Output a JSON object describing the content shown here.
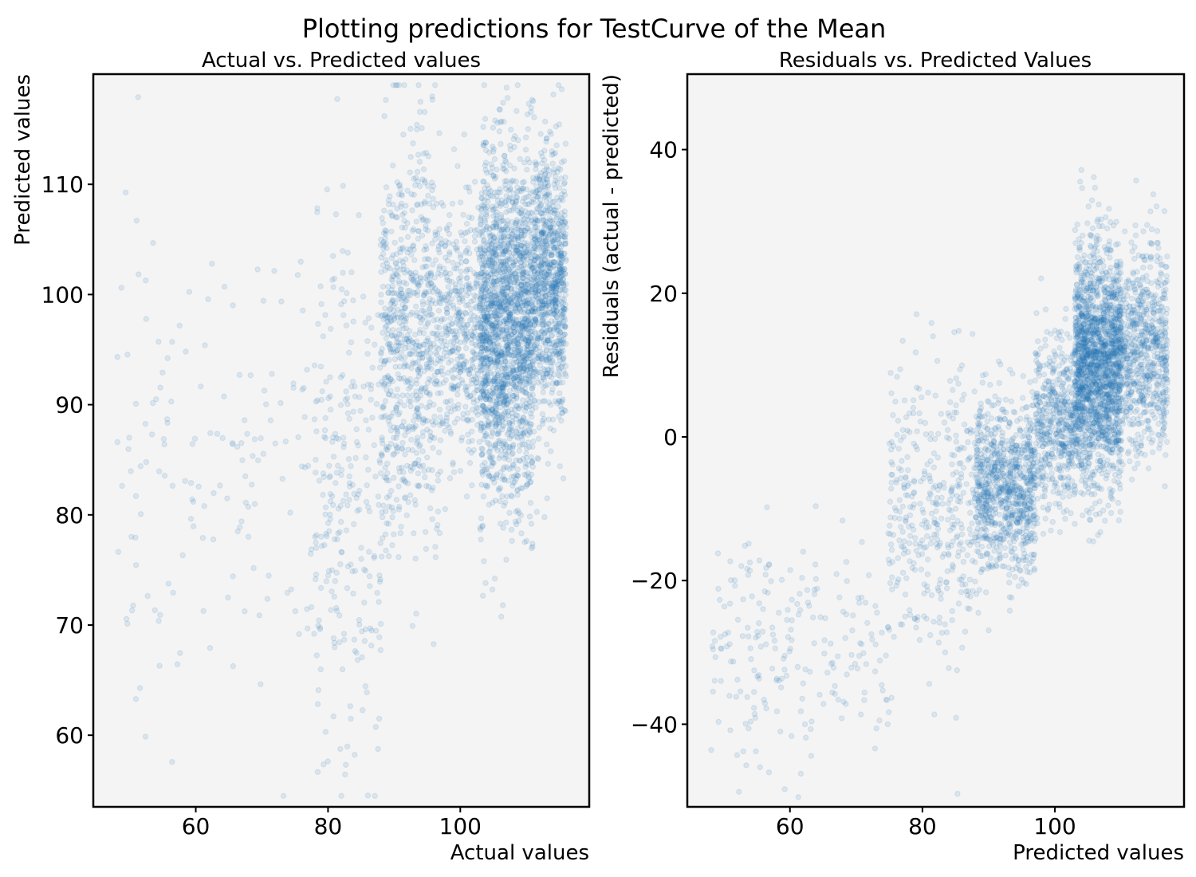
{
  "figure": {
    "suptitle": "Plotting predictions for TestCurve of the Mean"
  },
  "colors": {
    "point": "#1f77b4",
    "axes_bg": "#f4f4f4",
    "spine": "#000000"
  },
  "chart_data": [
    {
      "type": "scatter",
      "title": "Actual vs. Predicted values",
      "xlabel": "Actual values",
      "ylabel": "Predicted values",
      "xlim": [
        44.5,
        119.5
      ],
      "ylim": [
        53.5,
        120
      ],
      "xticks": [
        60,
        80,
        100
      ],
      "yticks": [
        60,
        70,
        80,
        90,
        100,
        110
      ],
      "grid": false,
      "point_alpha": 0.12,
      "clusters": [
        {
          "x_range": [
            48,
            78
          ],
          "y_mean": 85,
          "y_sd": 10,
          "count": 160
        },
        {
          "x_range": [
            78,
            88
          ],
          "y_mean": 82,
          "y_sd": 12,
          "count": 260
        },
        {
          "x_range": [
            88,
            97
          ],
          "y_mean": 96,
          "y_sd": 9,
          "count": 750
        },
        {
          "x_range": [
            97,
            103
          ],
          "y_mean": 97,
          "y_sd": 6,
          "count": 400
        },
        {
          "x_range": [
            103,
            111
          ],
          "y_mean": 97,
          "y_sd": 8,
          "count": 1900
        },
        {
          "x_range": [
            111,
            116
          ],
          "y_mean": 101,
          "y_sd": 6,
          "count": 900
        }
      ]
    },
    {
      "type": "scatter",
      "title": "Residuals vs. Predicted Values",
      "xlabel": "Predicted values",
      "ylabel": "Residuals (actual - predicted)",
      "xlim": [
        44.5,
        119.5
      ],
      "ylim": [
        -51.5,
        50.5
      ],
      "xticks": [
        60,
        80,
        100
      ],
      "yticks": [
        -40,
        -20,
        0,
        20,
        40
      ],
      "grid": false,
      "point_alpha": 0.12,
      "clusters": [
        {
          "x_range": [
            48,
            75
          ],
          "y_mean": -28,
          "y_sd": 8,
          "count": 220
        },
        {
          "x_range": [
            75,
            88
          ],
          "y_mean": -10,
          "y_sd": 10,
          "count": 380
        },
        {
          "x_range": [
            88,
            97
          ],
          "y_mean": -7,
          "y_sd": 6,
          "count": 900
        },
        {
          "x_range": [
            97,
            103
          ],
          "y_mean": 2,
          "y_sd": 6,
          "count": 500
        },
        {
          "x_range": [
            103,
            110
          ],
          "y_mean": 10,
          "y_sd": 8,
          "count": 1900
        },
        {
          "x_range": [
            110,
            117
          ],
          "y_mean": 12,
          "y_sd": 7,
          "count": 700
        }
      ]
    }
  ]
}
